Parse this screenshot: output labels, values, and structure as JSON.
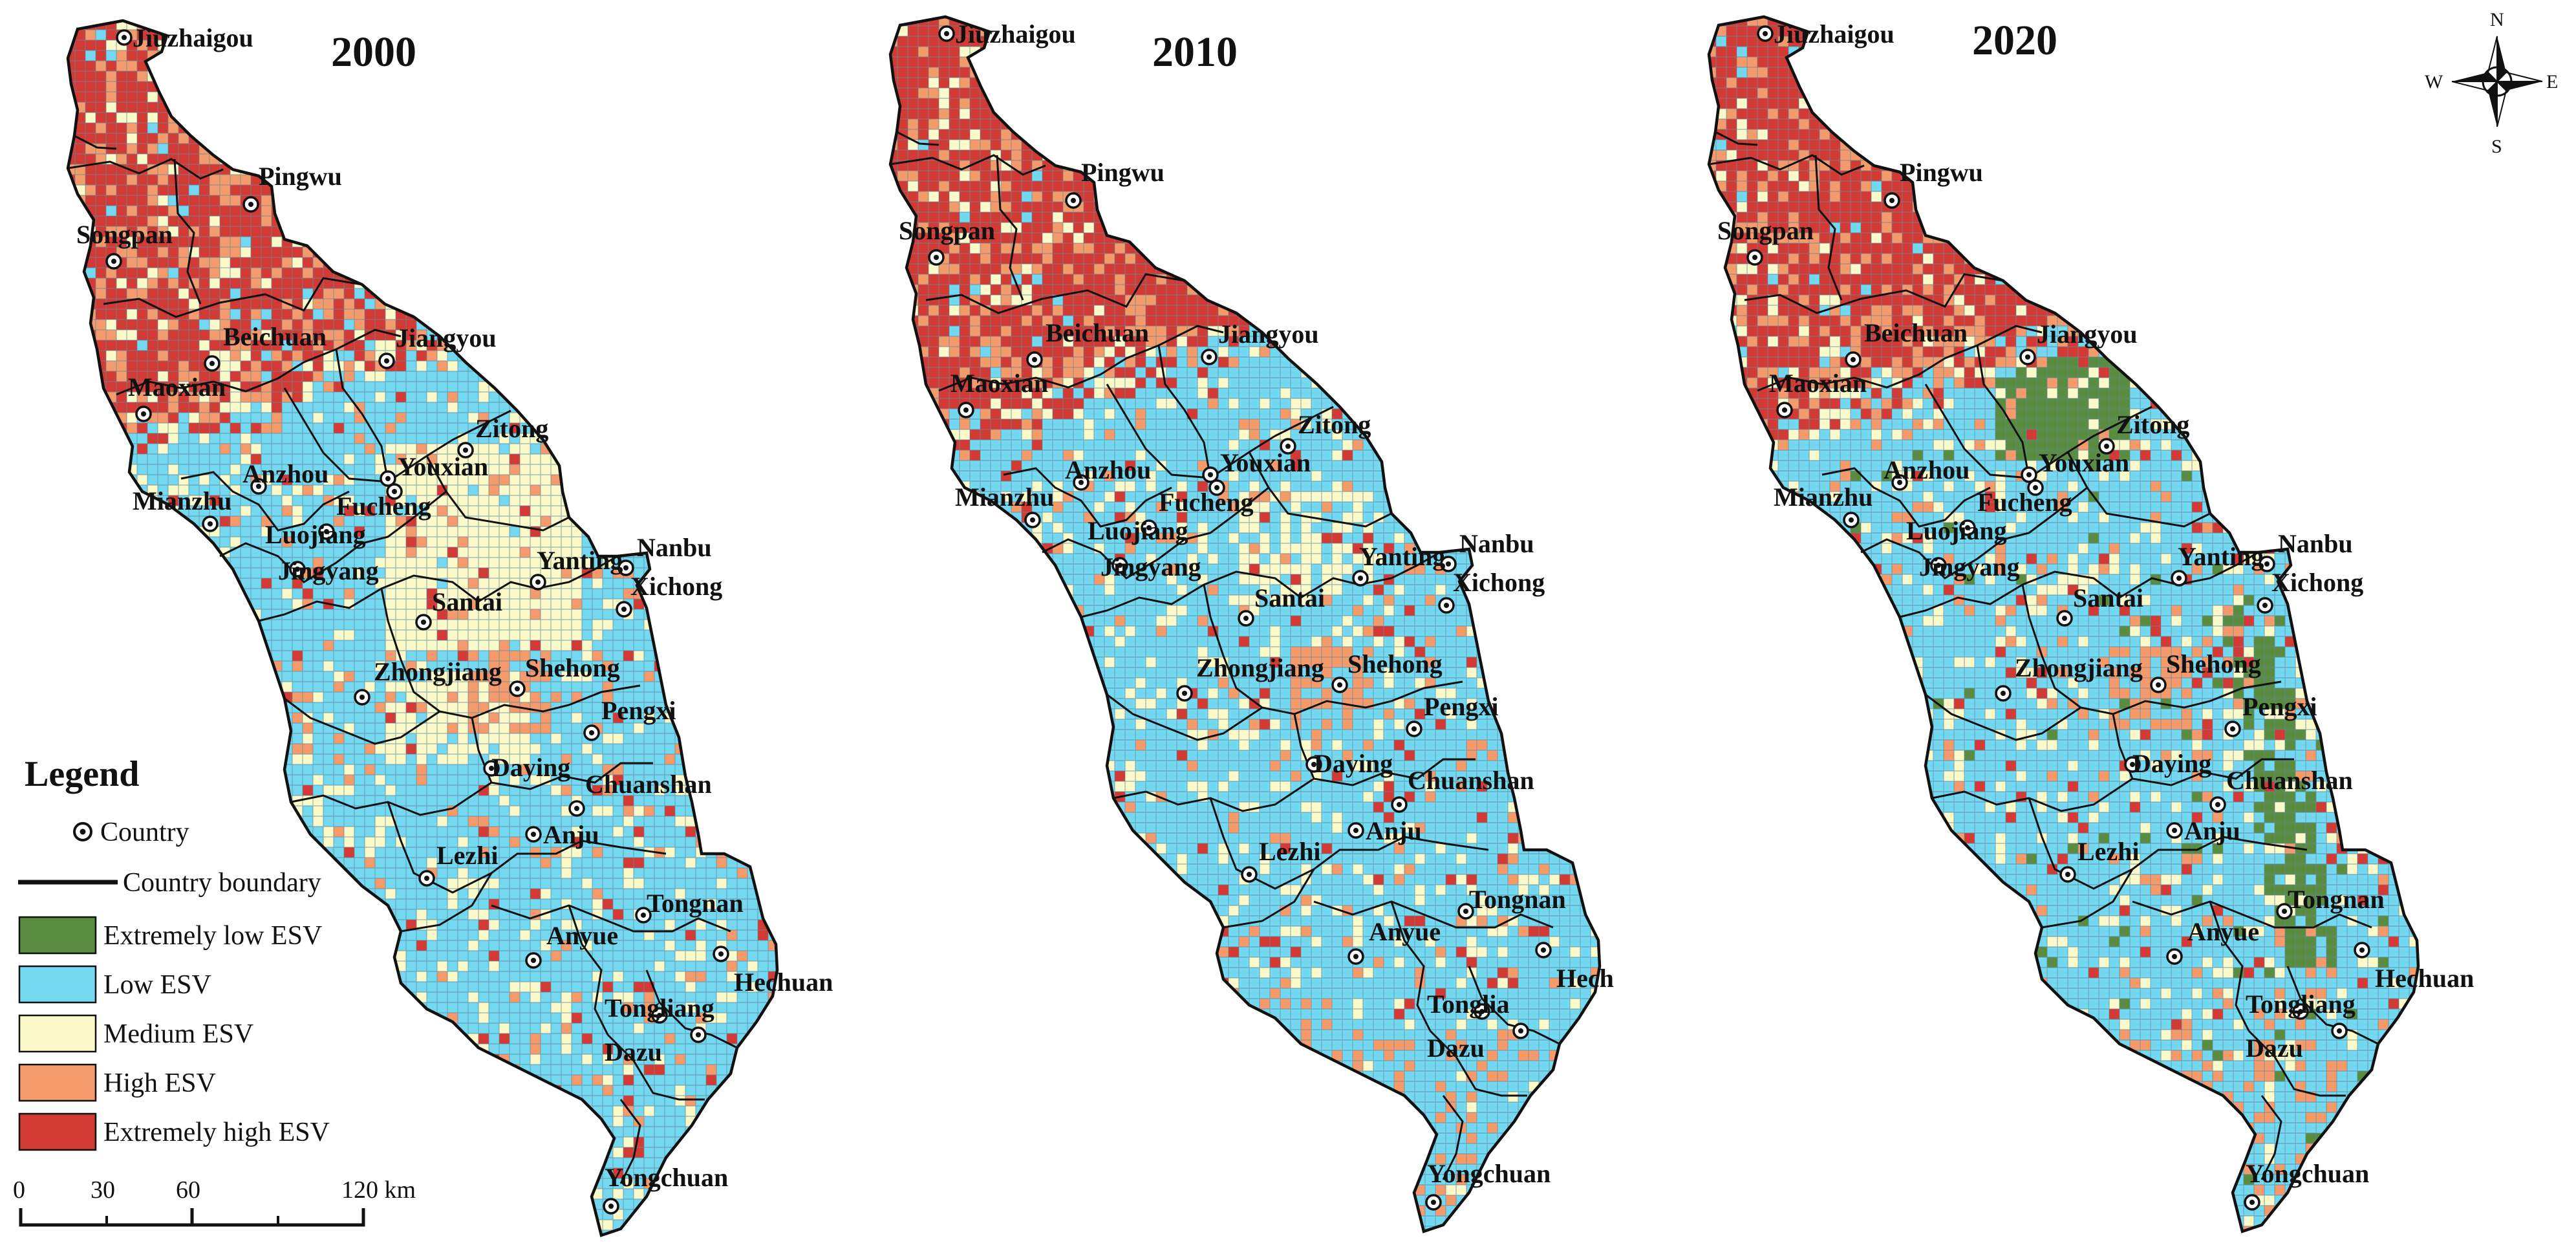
{
  "maps": [
    {
      "year": "2000",
      "labels": [
        "Jiuzhaigou",
        "Pingwu",
        "Songpan",
        "Beichuan",
        "Jiangyou",
        "Maoxian",
        "Zitong",
        "Anzhou",
        "Youxian",
        "Mianzhu",
        "Fucheng",
        "Luojiang",
        "Nanbu",
        "Yanting",
        "Xichong",
        "Jingyang",
        "Santai",
        "Zhongjiang",
        "Shehong",
        "Pengxi",
        "Daying",
        "Chuanshan",
        "Anju",
        "Lezhi",
        "Tongnan",
        "Anyue",
        "Hechuan",
        "Tongliang",
        "Dazu",
        "Yongchuan"
      ]
    },
    {
      "year": "2010",
      "labels": [
        "Jiuzhaigou",
        "Pingwu",
        "Songpan",
        "Beichuan",
        "Jiangyou",
        "Maoxian",
        "Zitong",
        "Anzhou",
        "Youxian",
        "Mianzhu",
        "Fucheng",
        "Luojiang",
        "Nanbu",
        "Yanting",
        "Xichong",
        "Jingyang",
        "Santai",
        "Zhongjiang",
        "Shehong",
        "Pengxi",
        "Daying",
        "Chuanshan",
        "Anju",
        "Lezhi",
        "Tongnan",
        "Anyue",
        "Hech",
        "Tonglia",
        "Dazu",
        "Yongchuan"
      ]
    },
    {
      "year": "2020",
      "labels": [
        "Jiuzhaigou",
        "Pingwu",
        "Songpan",
        "Beichuan",
        "Jiangyou",
        "Maoxian",
        "Zitong",
        "Anzhou",
        "Youxian",
        "Mianzhu",
        "Fucheng",
        "Luojiang",
        "Nanbu",
        "Yanting",
        "Xichong",
        "Jingyang",
        "Santai",
        "Zhongjiang",
        "Shehong",
        "Pengxi",
        "Daying",
        "Chuanshan",
        "Anju",
        "Lezhi",
        "Tongnan",
        "Anyue",
        "Hechuan",
        "Tongliang",
        "Dazu",
        "Yongchuan"
      ]
    }
  ],
  "legend": {
    "title": "Legend",
    "point_label": "Country",
    "line_label": "Country boundary",
    "classes": [
      {
        "label": "Extremely low ESV",
        "color": "#5a8c3f"
      },
      {
        "label": "Low ESV",
        "color": "#74d8f0"
      },
      {
        "label": "Medium ESV",
        "color": "#fdfac9"
      },
      {
        "label": "High ESV",
        "color": "#f59a6a"
      },
      {
        "label": "Extremely high ESV",
        "color": "#d33a33"
      }
    ]
  },
  "scale_bar": {
    "ticks": [
      "0",
      "30",
      "60",
      "120 km"
    ]
  },
  "compass": {
    "n": "N",
    "s": "S",
    "e": "E",
    "w": "W"
  }
}
